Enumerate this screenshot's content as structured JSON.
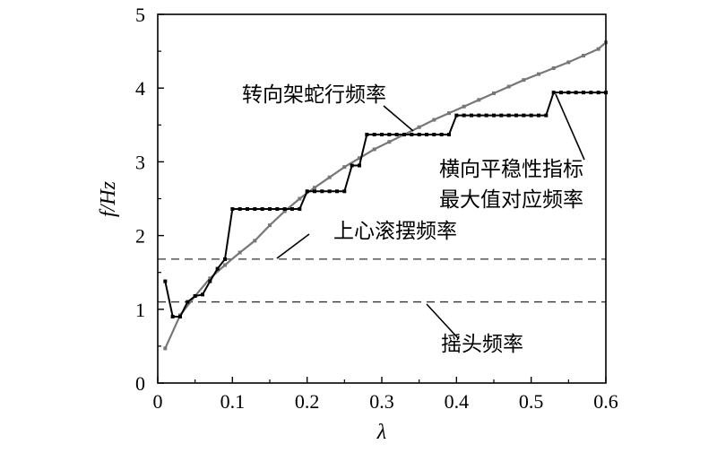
{
  "chart_data": {
    "type": "line",
    "xlabel": "λ",
    "ylabel": "f/Hz",
    "xlim": [
      0,
      0.6
    ],
    "ylim": [
      0,
      5
    ],
    "xticks": [
      0,
      0.1,
      0.2,
      0.3,
      0.4,
      0.5,
      0.6
    ],
    "xtick_labels": [
      "0",
      "0.1",
      "0.2",
      "0.3",
      "0.4",
      "0.5",
      "0.6"
    ],
    "yticks": [
      0,
      1,
      2,
      3,
      4,
      5
    ],
    "ytick_labels": [
      "0",
      "1",
      "2",
      "3",
      "4",
      "5"
    ],
    "grid": false,
    "series": [
      {
        "name": "转向架蛇行频率",
        "color": "#777777",
        "x": [
          0.01,
          0.03,
          0.05,
          0.07,
          0.09,
          0.11,
          0.13,
          0.15,
          0.17,
          0.19,
          0.21,
          0.23,
          0.25,
          0.27,
          0.29,
          0.31,
          0.33,
          0.35,
          0.37,
          0.39,
          0.41,
          0.43,
          0.45,
          0.47,
          0.49,
          0.51,
          0.53,
          0.55,
          0.57,
          0.59,
          0.6
        ],
        "y": [
          0.47,
          0.92,
          1.18,
          1.42,
          1.6,
          1.77,
          1.93,
          2.14,
          2.33,
          2.5,
          2.65,
          2.79,
          2.93,
          3.05,
          3.17,
          3.27,
          3.37,
          3.47,
          3.57,
          3.66,
          3.75,
          3.84,
          3.93,
          4.02,
          4.11,
          4.19,
          4.27,
          4.35,
          4.44,
          4.53,
          4.62
        ]
      },
      {
        "name": "横向平稳性指标最大值对应频率",
        "color": "#000000",
        "x": [
          0.01,
          0.02,
          0.03,
          0.04,
          0.05,
          0.06,
          0.07,
          0.08,
          0.09,
          0.1,
          0.11,
          0.12,
          0.13,
          0.14,
          0.15,
          0.16,
          0.17,
          0.18,
          0.19,
          0.2,
          0.21,
          0.22,
          0.23,
          0.24,
          0.25,
          0.26,
          0.27,
          0.28,
          0.29,
          0.3,
          0.31,
          0.32,
          0.33,
          0.34,
          0.35,
          0.36,
          0.37,
          0.38,
          0.39,
          0.4,
          0.41,
          0.42,
          0.43,
          0.44,
          0.45,
          0.46,
          0.47,
          0.48,
          0.49,
          0.5,
          0.51,
          0.52,
          0.53,
          0.54,
          0.55,
          0.56,
          0.57,
          0.58,
          0.59,
          0.6
        ],
        "y": [
          1.38,
          0.9,
          0.9,
          1.1,
          1.18,
          1.2,
          1.38,
          1.55,
          1.68,
          2.36,
          2.36,
          2.36,
          2.36,
          2.36,
          2.36,
          2.36,
          2.36,
          2.36,
          2.36,
          2.6,
          2.6,
          2.6,
          2.6,
          2.6,
          2.6,
          2.95,
          2.95,
          3.37,
          3.37,
          3.37,
          3.37,
          3.37,
          3.37,
          3.37,
          3.37,
          3.37,
          3.37,
          3.37,
          3.37,
          3.63,
          3.63,
          3.63,
          3.63,
          3.63,
          3.63,
          3.63,
          3.63,
          3.63,
          3.63,
          3.63,
          3.63,
          3.63,
          3.94,
          3.94,
          3.94,
          3.94,
          3.94,
          3.94,
          3.94,
          3.94
        ]
      }
    ],
    "reference_lines": [
      {
        "name": "上心滚摆频率",
        "y": 1.68,
        "style": "dashed"
      },
      {
        "name": "摇头频率",
        "y": 1.1,
        "style": "dashed"
      }
    ],
    "annotations": [
      {
        "text": "转向架蛇行频率",
        "target_x": 0.345,
        "target_y": 3.36
      },
      {
        "text": "横向平稳性指标",
        "target_x": 0.54,
        "target_y": 3.94
      },
      {
        "text": "最大值对应频率",
        "target_x": null,
        "target_y": null
      },
      {
        "text": "上心滚摆频率",
        "target_x": 0.16,
        "target_y": 1.68
      },
      {
        "text": "摇头频率",
        "target_x": 0.36,
        "target_y": 1.1
      }
    ]
  }
}
